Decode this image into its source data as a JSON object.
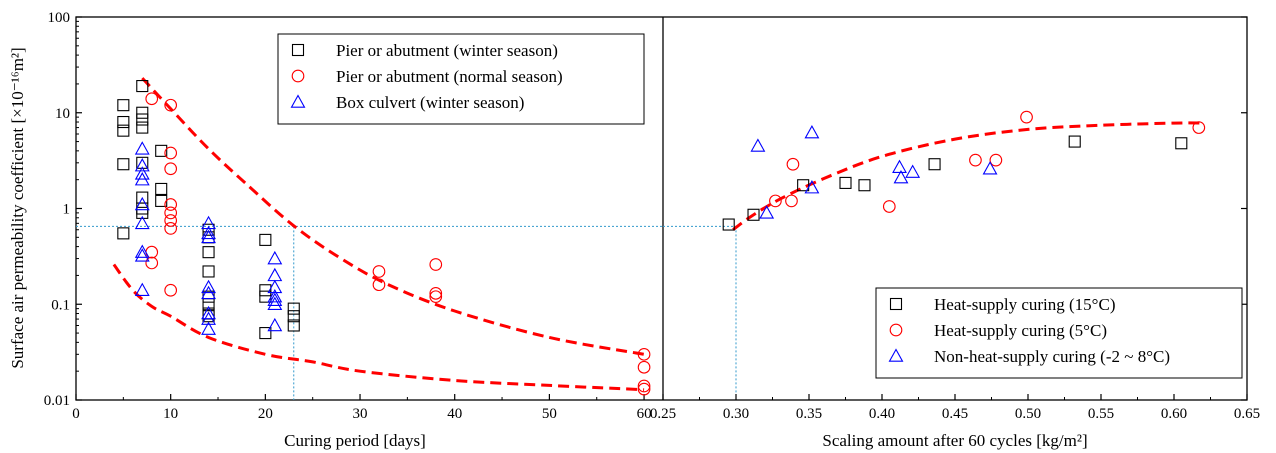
{
  "chart_data": [
    {
      "type": "scatter",
      "panel": "left",
      "xlabel": "Curing period [days]",
      "ylabel": "Surface air permeability coefficient [×10⁻¹⁶m²]",
      "xlim": [
        0,
        62
      ],
      "ylim": [
        0.01,
        100
      ],
      "yscale": "log",
      "xticks": [
        0,
        10,
        20,
        30,
        40,
        50,
        60
      ],
      "yticks": [
        0.01,
        0.1,
        1,
        10,
        100
      ],
      "ytick_labels": [
        "0.01",
        "0.1",
        "1",
        "10",
        "100"
      ],
      "legend": "top-center",
      "series": [
        {
          "name": "Pier or abutment (winter season)",
          "marker": "square",
          "color": "#000000",
          "points": [
            [
              5,
              12
            ],
            [
              5,
              8
            ],
            [
              5,
              6.5
            ],
            [
              5,
              2.9
            ],
            [
              5,
              0.55
            ],
            [
              7,
              19
            ],
            [
              7,
              10
            ],
            [
              7,
              8.5
            ],
            [
              7,
              7
            ],
            [
              7,
              3
            ],
            [
              7,
              1.3
            ],
            [
              7,
              1.0
            ],
            [
              7,
              0.9
            ],
            [
              9,
              4
            ],
            [
              9,
              1.6
            ],
            [
              9,
              1.2
            ],
            [
              14,
              0.6
            ],
            [
              14,
              0.5
            ],
            [
              14,
              0.35
            ],
            [
              14,
              0.22
            ],
            [
              14,
              0.12
            ],
            [
              14,
              0.1
            ],
            [
              14,
              0.08
            ],
            [
              14,
              0.075
            ],
            [
              20,
              0.47
            ],
            [
              20,
              0.14
            ],
            [
              20,
              0.12
            ],
            [
              20,
              0.05
            ],
            [
              23,
              0.09
            ],
            [
              23,
              0.075
            ],
            [
              23,
              0.06
            ]
          ]
        },
        {
          "name": "Pier or abutment (normal season)",
          "marker": "circle",
          "color": "#ff0000",
          "points": [
            [
              8,
              14
            ],
            [
              8,
              0.35
            ],
            [
              8,
              0.27
            ],
            [
              10,
              12
            ],
            [
              10,
              3.8
            ],
            [
              10,
              2.6
            ],
            [
              10,
              1.1
            ],
            [
              10,
              0.9
            ],
            [
              10,
              0.75
            ],
            [
              10,
              0.62
            ],
            [
              10,
              0.14
            ],
            [
              32,
              0.22
            ],
            [
              32,
              0.16
            ],
            [
              38,
              0.26
            ],
            [
              38,
              0.13
            ],
            [
              38,
              0.12
            ],
            [
              60,
              0.03
            ],
            [
              60,
              0.022
            ],
            [
              60,
              0.014
            ],
            [
              60,
              0.013
            ]
          ]
        },
        {
          "name": "Box culvert  (winter season)",
          "marker": "triangle",
          "color": "#0000ff",
          "points": [
            [
              7,
              4.2
            ],
            [
              7,
              2.8
            ],
            [
              7,
              2.3
            ],
            [
              7,
              2
            ],
            [
              7,
              1.1
            ],
            [
              7,
              0.7
            ],
            [
              7,
              0.35
            ],
            [
              7,
              0.32
            ],
            [
              7,
              0.14
            ],
            [
              14,
              0.7
            ],
            [
              14,
              0.55
            ],
            [
              14,
              0.5
            ],
            [
              14,
              0.15
            ],
            [
              14,
              0.13
            ],
            [
              14,
              0.08
            ],
            [
              14,
              0.07
            ],
            [
              14,
              0.055
            ],
            [
              21,
              0.3
            ],
            [
              21,
              0.2
            ],
            [
              21,
              0.15
            ],
            [
              21,
              0.12
            ],
            [
              21,
              0.11
            ],
            [
              21,
              0.1
            ],
            [
              21,
              0.06
            ]
          ]
        }
      ],
      "curves": [
        {
          "style": "dashed",
          "color": "#ff0000",
          "points": [
            [
              7,
              23
            ],
            [
              10,
              11
            ],
            [
              14,
              4.2
            ],
            [
              18,
              1.8
            ],
            [
              23,
              0.66
            ],
            [
              28,
              0.3
            ],
            [
              33,
              0.16
            ],
            [
              40,
              0.085
            ],
            [
              50,
              0.045
            ],
            [
              60,
              0.03
            ]
          ]
        },
        {
          "style": "dashed",
          "color": "#ff0000",
          "points": [
            [
              4,
              0.26
            ],
            [
              6,
              0.14
            ],
            [
              8,
              0.095
            ],
            [
              10,
              0.075
            ],
            [
              14,
              0.045
            ],
            [
              20,
              0.03
            ],
            [
              25,
              0.025
            ],
            [
              30,
              0.02
            ],
            [
              40,
              0.016
            ],
            [
              50,
              0.0142
            ],
            [
              60,
              0.0128
            ]
          ]
        }
      ],
      "reference_lines": {
        "x": 23,
        "y": 0.65,
        "color": "#3399cc",
        "style": "dotted"
      }
    },
    {
      "type": "scatter",
      "panel": "right",
      "xlabel": "Scaling amount after 60 cycles [kg/m²]",
      "xlim": [
        0.25,
        0.65
      ],
      "ylim": [
        0.01,
        100
      ],
      "yscale": "log",
      "xticks": [
        0.25,
        0.3,
        0.35,
        0.4,
        0.45,
        0.5,
        0.55,
        0.6,
        0.65
      ],
      "xtick_labels": [
        "0.25",
        "0.30",
        "0.35",
        "0.40",
        "0.45",
        "0.50",
        "0.55",
        "0.60",
        "0.65"
      ],
      "legend": "bottom-right",
      "series": [
        {
          "name": "Heat-supply curing (15°C)",
          "marker": "square",
          "color": "#000000",
          "points": [
            [
              0.295,
              0.68
            ],
            [
              0.312,
              0.86
            ],
            [
              0.346,
              1.75
            ],
            [
              0.375,
              1.85
            ],
            [
              0.388,
              1.75
            ],
            [
              0.436,
              2.9
            ],
            [
              0.532,
              5.0
            ],
            [
              0.605,
              4.8
            ]
          ]
        },
        {
          "name": "Heat-supply curing (5°C)",
          "marker": "circle",
          "color": "#ff0000",
          "points": [
            [
              0.327,
              1.2
            ],
            [
              0.338,
              1.2
            ],
            [
              0.339,
              2.9
            ],
            [
              0.405,
              1.05
            ],
            [
              0.464,
              3.2
            ],
            [
              0.478,
              3.2
            ],
            [
              0.499,
              9.0
            ],
            [
              0.617,
              7.0
            ]
          ]
        },
        {
          "name": "Non-heat-supply curing (-2 ~ 8°C)",
          "marker": "triangle",
          "color": "#0000ff",
          "points": [
            [
              0.315,
              4.5
            ],
            [
              0.321,
              0.9
            ],
            [
              0.352,
              6.2
            ],
            [
              0.352,
              1.65
            ],
            [
              0.412,
              2.7
            ],
            [
              0.413,
              2.1
            ],
            [
              0.421,
              2.4
            ],
            [
              0.474,
              2.6
            ]
          ]
        }
      ],
      "curves": [
        {
          "style": "dashed",
          "color": "#ff0000",
          "points": [
            [
              0.298,
              0.6
            ],
            [
              0.31,
              0.82
            ],
            [
              0.33,
              1.25
            ],
            [
              0.36,
              2.05
            ],
            [
              0.4,
              3.5
            ],
            [
              0.45,
              5.3
            ],
            [
              0.5,
              6.7
            ],
            [
              0.55,
              7.4
            ],
            [
              0.6,
              7.8
            ],
            [
              0.62,
              7.8
            ]
          ]
        }
      ],
      "reference_lines": {
        "x": 0.3,
        "y": 0.65,
        "color": "#3399cc",
        "style": "dotted"
      }
    }
  ]
}
